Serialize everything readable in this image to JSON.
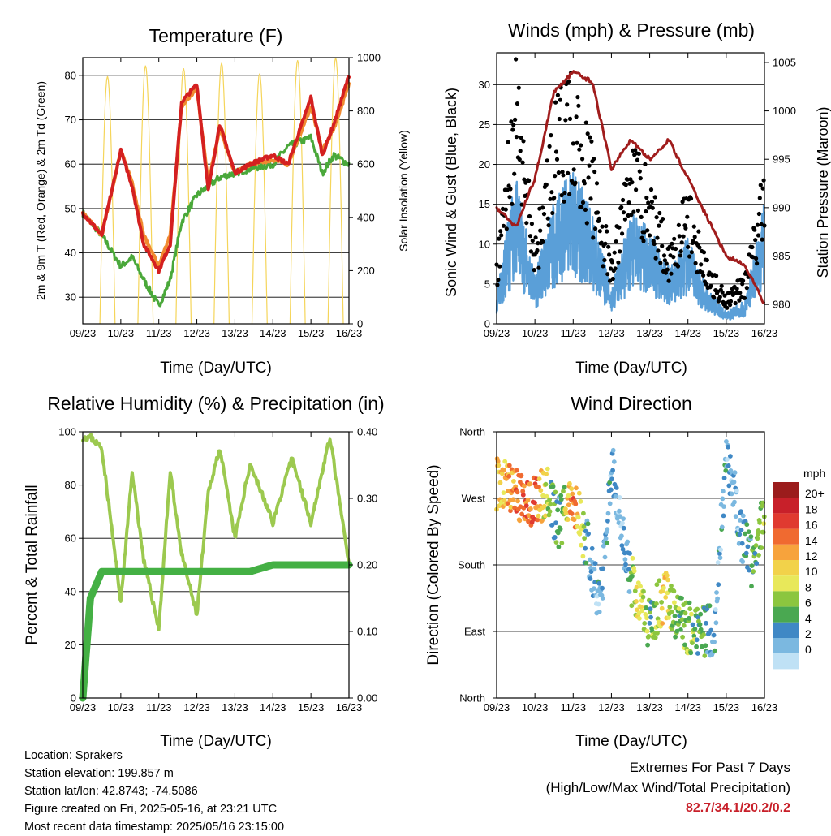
{
  "x_ticks": [
    "09/23",
    "10/23",
    "11/23",
    "12/23",
    "13/23",
    "14/23",
    "15/23",
    "16/23"
  ],
  "xlabel": "Time (Day/UTC)",
  "panels": {
    "temperature": {
      "title": "Temperature (F)",
      "ylabel_left": "2m & 9m T (Red, Orange) & 2m Td (Green)",
      "ylabel_right": "Solar Insolation (Yellow)",
      "left_ticks": [
        "30",
        "40",
        "50",
        "60",
        "70",
        "80"
      ],
      "right_ticks": [
        "0",
        "200",
        "400",
        "600",
        "800",
        "1000"
      ]
    },
    "winds": {
      "title": "Winds (mph) & Pressure (mb)",
      "ylabel_left": "Sonic Wind & Gust (Blue, Black)",
      "ylabel_right": "Station Pressure (Maroon)",
      "left_ticks": [
        "0",
        "5",
        "10",
        "15",
        "20",
        "25",
        "30"
      ],
      "right_ticks": [
        "980",
        "985",
        "990",
        "995",
        "1000",
        "1005"
      ]
    },
    "humidity": {
      "title": "Relative Humidity (%) & Precipitation (in)",
      "ylabel_left": "Percent & Total Rainfall",
      "left_ticks": [
        "0",
        "20",
        "40",
        "60",
        "80",
        "100"
      ],
      "right_ticks": [
        "0.00",
        "0.10",
        "0.20",
        "0.30",
        "0.40"
      ]
    },
    "direction": {
      "title": "Wind Direction",
      "ylabel_left": "Direction (Colored By Speed)",
      "left_ticks": [
        "North",
        "East",
        "South",
        "West",
        "North"
      ],
      "legend_title": "mph",
      "legend_labels": [
        "20+",
        "18",
        "16",
        "14",
        "12",
        "10",
        "8",
        "6",
        "4",
        "2",
        "0"
      ],
      "legend_colors": [
        "#9b1c1c",
        "#c8202a",
        "#e03a30",
        "#f06a30",
        "#f7a33c",
        "#f2d24a",
        "#e8e85a",
        "#8cc63f",
        "#4aa851",
        "#3f88c5",
        "#7bb8e0",
        "#bfe1f5"
      ]
    }
  },
  "info": {
    "location": "Location: Sprakers",
    "elevation": "Station elevation: 199.857 m",
    "latlon": "Station lat/lon: 42.8743; -74.5086",
    "created": "Figure created on Fri, 2025-05-16, at 23:21 UTC",
    "recent": "Most recent data timestamp: 2025/05/16 23:15:00"
  },
  "extremes": {
    "line1": "Extremes For Past 7 Days",
    "line2": "(High/Low/Max Wind/Total Precipitation)",
    "values": "82.7/34.1/20.2/0.2"
  },
  "chart_data": [
    {
      "type": "line",
      "title": "Temperature (F)",
      "xlabel": "Time (Day/UTC)",
      "ylabel": "2m & 9m T (Red, Orange) & 2m Td (Green)",
      "y2label": "Solar Insolation (Yellow)",
      "ylim": [
        24,
        84
      ],
      "y2lim": [
        0,
        1000
      ],
      "x": [
        9,
        9.5,
        10,
        10.3,
        10.6,
        11,
        11.3,
        11.6,
        12,
        12.3,
        12.6,
        13,
        13.4,
        14,
        14.4,
        15,
        15.3,
        15.6,
        16
      ],
      "series": [
        {
          "name": "2m T",
          "color": "#d42020",
          "values": [
            49,
            44,
            63,
            55,
            42,
            36,
            42,
            74,
            78,
            54,
            69,
            58,
            60,
            62,
            60,
            75,
            62,
            69,
            80
          ]
        },
        {
          "name": "9m T",
          "color": "#f08a30",
          "values": [
            49,
            44,
            63,
            56,
            44,
            37,
            44,
            73,
            77,
            56,
            68,
            58,
            60,
            61,
            60,
            73,
            63,
            68,
            78
          ]
        },
        {
          "name": "2m Td",
          "color": "#4aa83a",
          "values": [
            49,
            44,
            37,
            39,
            34,
            28,
            34,
            47,
            53,
            55,
            57,
            58,
            59,
            60,
            64,
            66,
            58,
            62,
            60
          ]
        },
        {
          "name": "Solar Insolation",
          "color": "#f5d55a",
          "axis": "y2",
          "peaks_x": [
            9.65,
            10.65,
            11.65,
            12.65,
            13.65,
            14.65,
            15.65
          ],
          "peaks_y": [
            930,
            970,
            960,
            980,
            940,
            990,
            1000
          ]
        }
      ]
    },
    {
      "type": "line",
      "title": "Winds (mph) & Pressure (mb)",
      "xlabel": "Time (Day/UTC)",
      "ylabel": "Sonic Wind & Gust (Blue, Black)",
      "y2label": "Station Pressure (Maroon)",
      "ylim": [
        0,
        34
      ],
      "y2lim": [
        978,
        1006
      ],
      "x": [
        9,
        9.5,
        10,
        10.5,
        11,
        11.5,
        12,
        12.5,
        13,
        13.5,
        14,
        14.5,
        15,
        15.5,
        16
      ],
      "series": [
        {
          "name": "Sonic Wind",
          "color": "#5a9fd8",
          "values": [
            3,
            12,
            4,
            10,
            13,
            9,
            3,
            9,
            8,
            5,
            7,
            3,
            1,
            2,
            10
          ]
        },
        {
          "name": "Gust",
          "color": "#000000",
          "values": [
            6,
            26,
            8,
            21,
            24,
            17,
            6,
            19,
            14,
            8,
            13,
            6,
            3,
            5,
            15
          ]
        },
        {
          "name": "Station Pressure",
          "color": "#a01c1c",
          "axis": "y2",
          "values": [
            990,
            988,
            993,
            1002,
            1004,
            1003,
            994,
            997,
            995,
            997,
            993,
            989,
            985,
            984,
            980
          ]
        }
      ]
    },
    {
      "type": "line",
      "title": "Relative Humidity (%) & Precipitation (in)",
      "xlabel": "Time (Day/UTC)",
      "ylabel": "Percent & Total Rainfall",
      "ylim": [
        0,
        100
      ],
      "y2lim": [
        0,
        0.4
      ],
      "x": [
        9,
        9.2,
        9.5,
        10,
        10.3,
        10.6,
        11,
        11.3,
        11.6,
        12,
        12.3,
        12.6,
        13,
        13.4,
        14,
        14.5,
        15,
        15.5,
        16
      ],
      "series": [
        {
          "name": "Relative Humidity",
          "color": "#9cc94f",
          "values": [
            98,
            98,
            94,
            36,
            85,
            52,
            26,
            85,
            54,
            31,
            77,
            94,
            60,
            88,
            66,
            90,
            66,
            98,
            50
          ]
        },
        {
          "name": "Total Precipitation",
          "color": "#44b044",
          "axis": "y2",
          "values": [
            0,
            0.15,
            0.19,
            0.19,
            0.19,
            0.19,
            0.19,
            0.19,
            0.19,
            0.19,
            0.19,
            0.19,
            0.19,
            0.19,
            0.2,
            0.2,
            0.2,
            0.2,
            0.2
          ]
        }
      ]
    },
    {
      "type": "scatter",
      "title": "Wind Direction",
      "xlabel": "Time (Day/UTC)",
      "ylabel": "Direction (Colored By Speed)",
      "y_ticks": [
        "North",
        "East",
        "South",
        "West",
        "North"
      ],
      "color_by": "wind speed (mph)",
      "x": [
        9.2,
        9.5,
        10,
        10.3,
        10.6,
        11,
        11.4,
        11.7,
        12,
        12.4,
        12.7,
        13,
        13.4,
        13.7,
        14,
        14.4,
        14.7,
        15,
        15.4,
        15.7,
        16
      ],
      "series": [
        {
          "name": "direction (deg)",
          "values": [
            290,
            275,
            265,
            280,
            235,
            270,
            200,
            120,
            320,
            180,
            130,
            100,
            140,
            110,
            95,
            90,
            90,
            340,
            220,
            180,
            250
          ]
        },
        {
          "name": "speed (mph)",
          "values": [
            12,
            16,
            16,
            9,
            4,
            16,
            3,
            3,
            3,
            2,
            12,
            6,
            12,
            7,
            8,
            6,
            3,
            3,
            3,
            6,
            8
          ]
        }
      ]
    }
  ]
}
